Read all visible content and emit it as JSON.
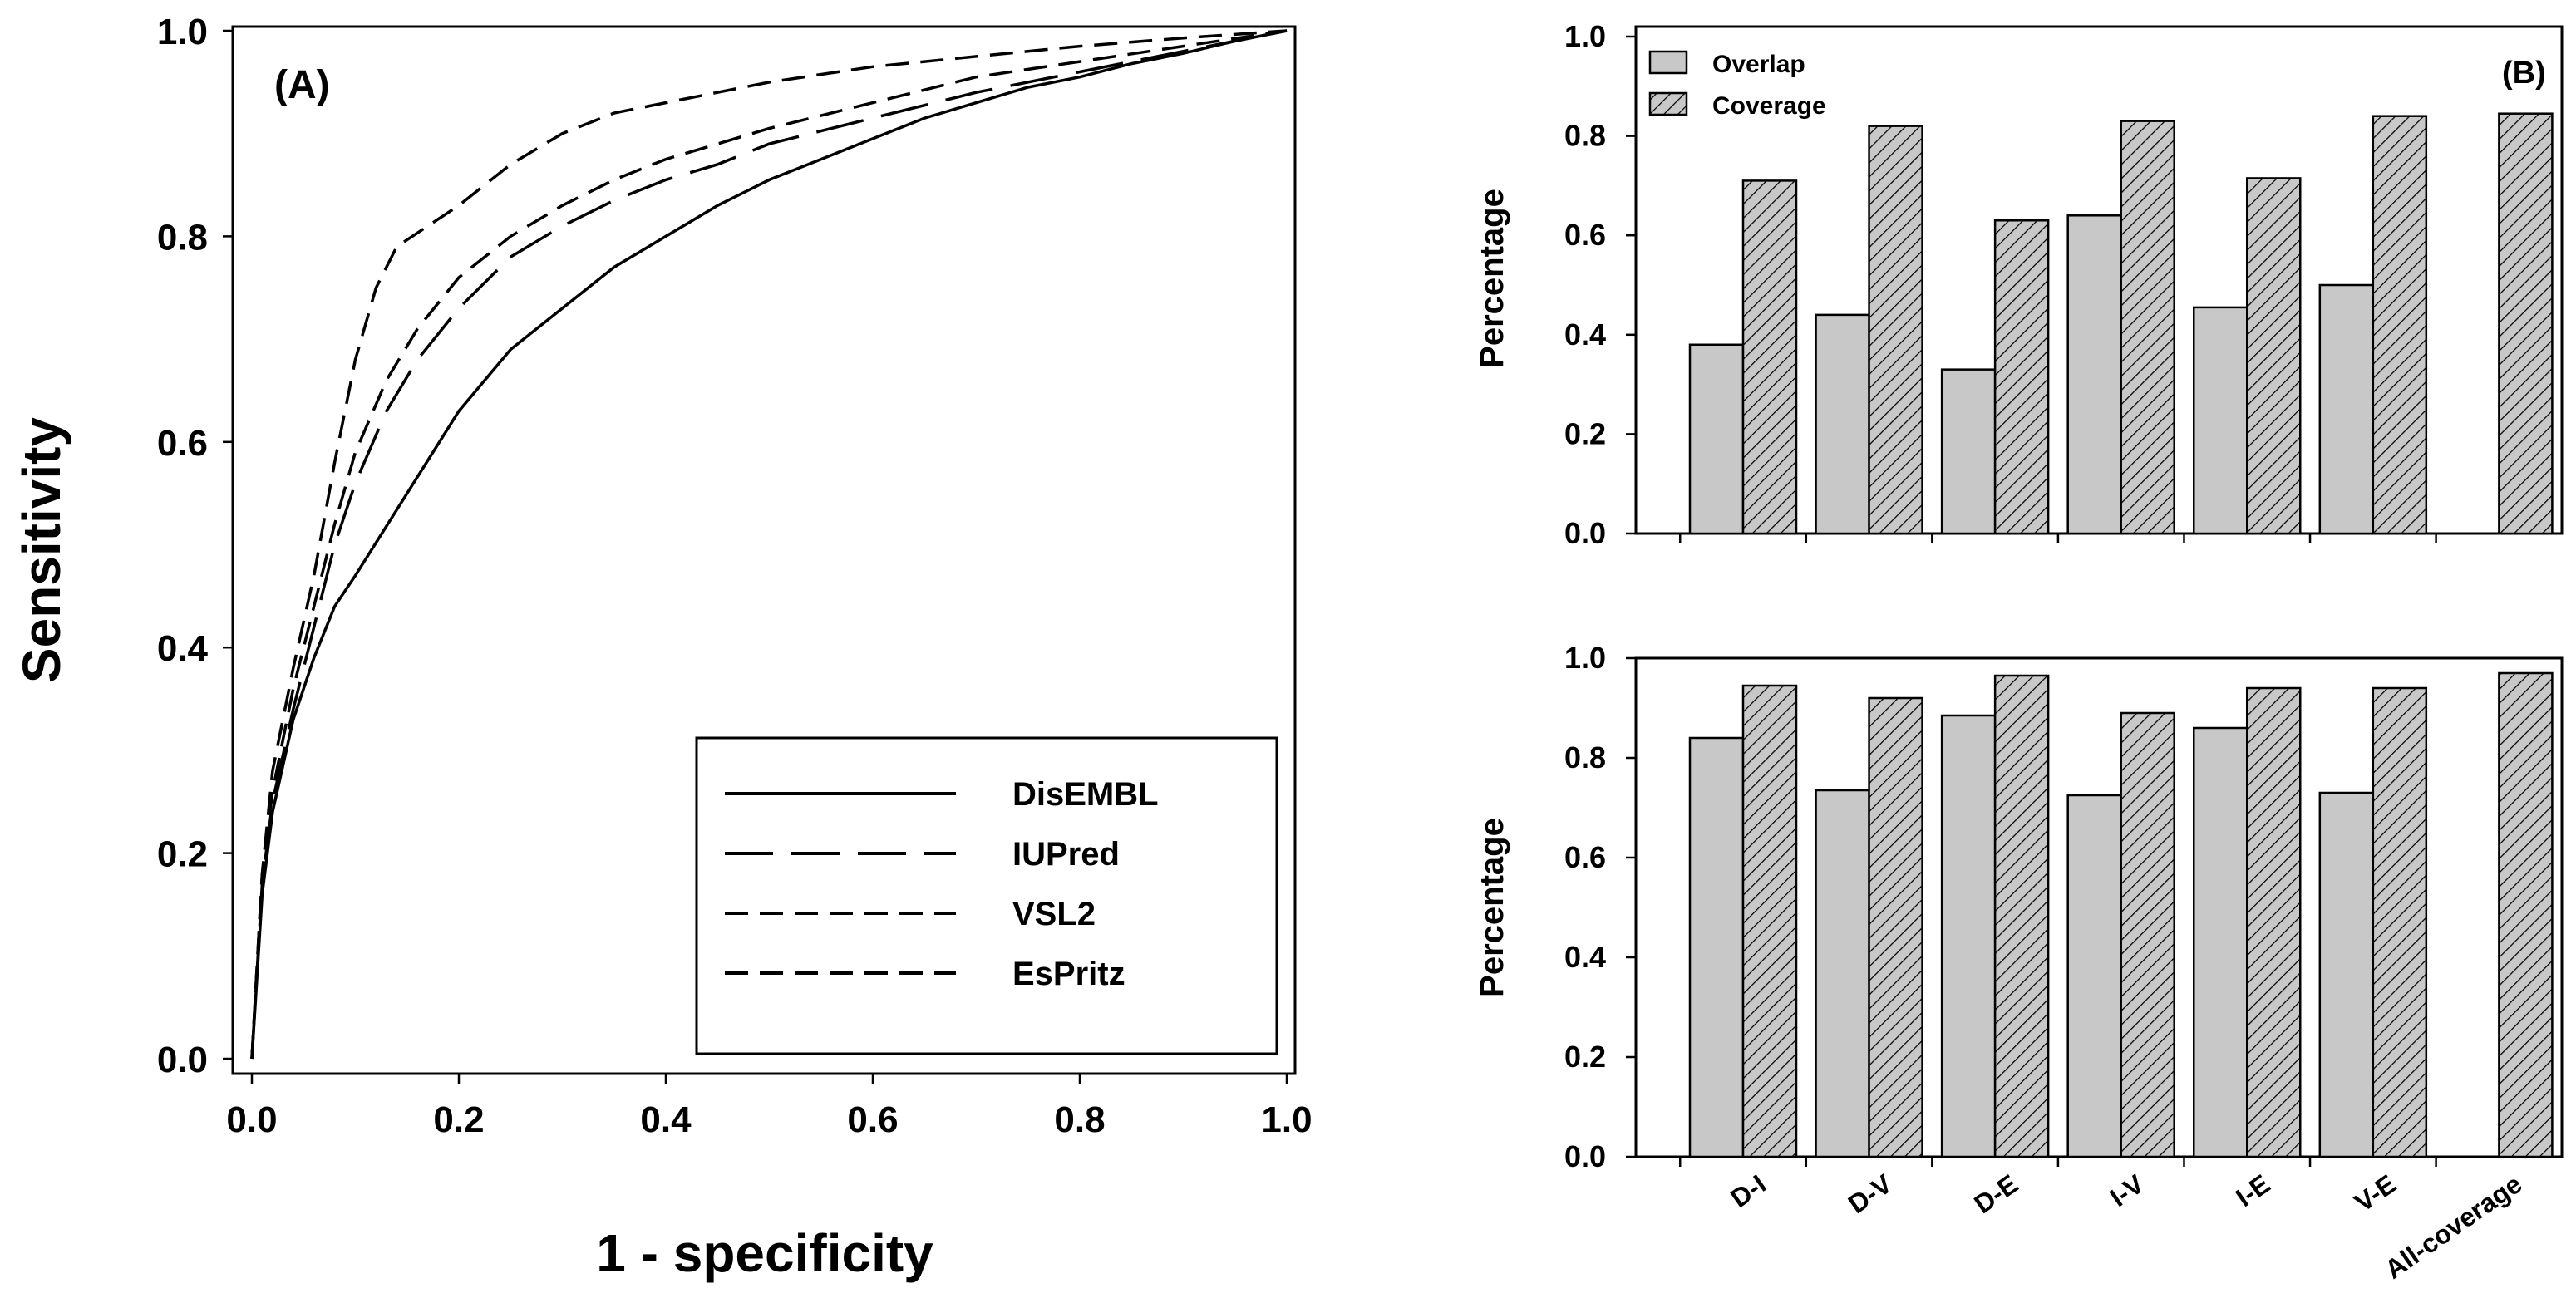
{
  "chart_data": [
    {
      "type": "line",
      "panel_label": "(A)",
      "xlabel": "1 - specificity",
      "ylabel": "Sensitivity",
      "xlim": [
        0,
        1
      ],
      "ylim": [
        0,
        1
      ],
      "xticks": [
        "0.0",
        "0.2",
        "0.4",
        "0.6",
        "0.8",
        "1.0"
      ],
      "yticks": [
        "0.0",
        "0.2",
        "0.4",
        "0.6",
        "0.8",
        "1.0"
      ],
      "legend_position": "bottom-right",
      "series": [
        {
          "name": "DisEMBL",
          "style": "solid",
          "x": [
            0,
            0.01,
            0.02,
            0.04,
            0.06,
            0.08,
            0.1,
            0.15,
            0.2,
            0.25,
            0.3,
            0.35,
            0.4,
            0.45,
            0.5,
            0.55,
            0.6,
            0.65,
            0.7,
            0.75,
            0.8,
            0.85,
            0.9,
            0.95,
            1.0
          ],
          "y": [
            0,
            0.16,
            0.24,
            0.33,
            0.39,
            0.44,
            0.47,
            0.55,
            0.63,
            0.69,
            0.73,
            0.77,
            0.8,
            0.83,
            0.855,
            0.875,
            0.895,
            0.915,
            0.93,
            0.945,
            0.955,
            0.968,
            0.978,
            0.99,
            1.0
          ]
        },
        {
          "name": "IUPred",
          "style": "long-dash",
          "x": [
            0,
            0.01,
            0.02,
            0.04,
            0.06,
            0.08,
            0.1,
            0.13,
            0.16,
            0.2,
            0.25,
            0.3,
            0.35,
            0.4,
            0.45,
            0.5,
            0.6,
            0.7,
            0.8,
            0.9,
            1.0
          ],
          "y": [
            0,
            0.17,
            0.25,
            0.34,
            0.42,
            0.5,
            0.56,
            0.63,
            0.68,
            0.73,
            0.78,
            0.81,
            0.835,
            0.855,
            0.87,
            0.89,
            0.915,
            0.94,
            0.96,
            0.98,
            1.0
          ]
        },
        {
          "name": "VSL2",
          "style": "dash",
          "x": [
            0,
            0.01,
            0.02,
            0.04,
            0.06,
            0.08,
            0.1,
            0.13,
            0.16,
            0.2,
            0.25,
            0.3,
            0.35,
            0.4,
            0.45,
            0.5,
            0.6,
            0.7,
            0.8,
            0.9,
            1.0
          ],
          "y": [
            0,
            0.18,
            0.26,
            0.36,
            0.44,
            0.52,
            0.59,
            0.66,
            0.71,
            0.76,
            0.8,
            0.83,
            0.855,
            0.875,
            0.89,
            0.905,
            0.93,
            0.955,
            0.97,
            0.985,
            1.0
          ]
        },
        {
          "name": "EsPritz",
          "style": "dash",
          "x": [
            0,
            0.01,
            0.02,
            0.04,
            0.06,
            0.08,
            0.1,
            0.12,
            0.14,
            0.17,
            0.2,
            0.25,
            0.3,
            0.35,
            0.4,
            0.45,
            0.5,
            0.6,
            0.7,
            0.8,
            0.9,
            1.0
          ],
          "y": [
            0,
            0.18,
            0.28,
            0.38,
            0.47,
            0.58,
            0.68,
            0.75,
            0.79,
            0.81,
            0.83,
            0.87,
            0.9,
            0.92,
            0.93,
            0.94,
            0.95,
            0.965,
            0.975,
            0.985,
            0.993,
            1.0
          ]
        }
      ]
    },
    {
      "type": "bar",
      "panel_label": "(B)",
      "ylabel": "Percentage",
      "ylim": [
        0,
        1
      ],
      "yticks": [
        "0.0",
        "0.2",
        "0.4",
        "0.6",
        "0.8",
        "1.0"
      ],
      "categories": [
        "D-I",
        "D-V",
        "D-E",
        "I-V",
        "I-E",
        "V-E",
        "All-coverage"
      ],
      "legend_position": "top-left",
      "series": [
        {
          "name": "Overlap",
          "values": [
            0.38,
            0.44,
            0.33,
            0.64,
            0.455,
            0.5,
            null
          ]
        },
        {
          "name": "Coverage",
          "values": [
            0.71,
            0.82,
            0.63,
            0.83,
            0.715,
            0.84,
            0.845
          ]
        }
      ]
    },
    {
      "type": "bar",
      "ylabel": "Percentage",
      "ylim": [
        0,
        1
      ],
      "yticks": [
        "0.0",
        "0.2",
        "0.4",
        "0.6",
        "0.8",
        "1.0"
      ],
      "categories": [
        "D-I",
        "D-V",
        "D-E",
        "I-V",
        "I-E",
        "V-E",
        "All-coverage"
      ],
      "series": [
        {
          "name": "Overlap",
          "values": [
            0.84,
            0.735,
            0.885,
            0.725,
            0.86,
            0.73,
            null
          ]
        },
        {
          "name": "Coverage",
          "values": [
            0.945,
            0.92,
            0.965,
            0.89,
            0.94,
            0.94,
            0.97
          ]
        }
      ]
    }
  ]
}
